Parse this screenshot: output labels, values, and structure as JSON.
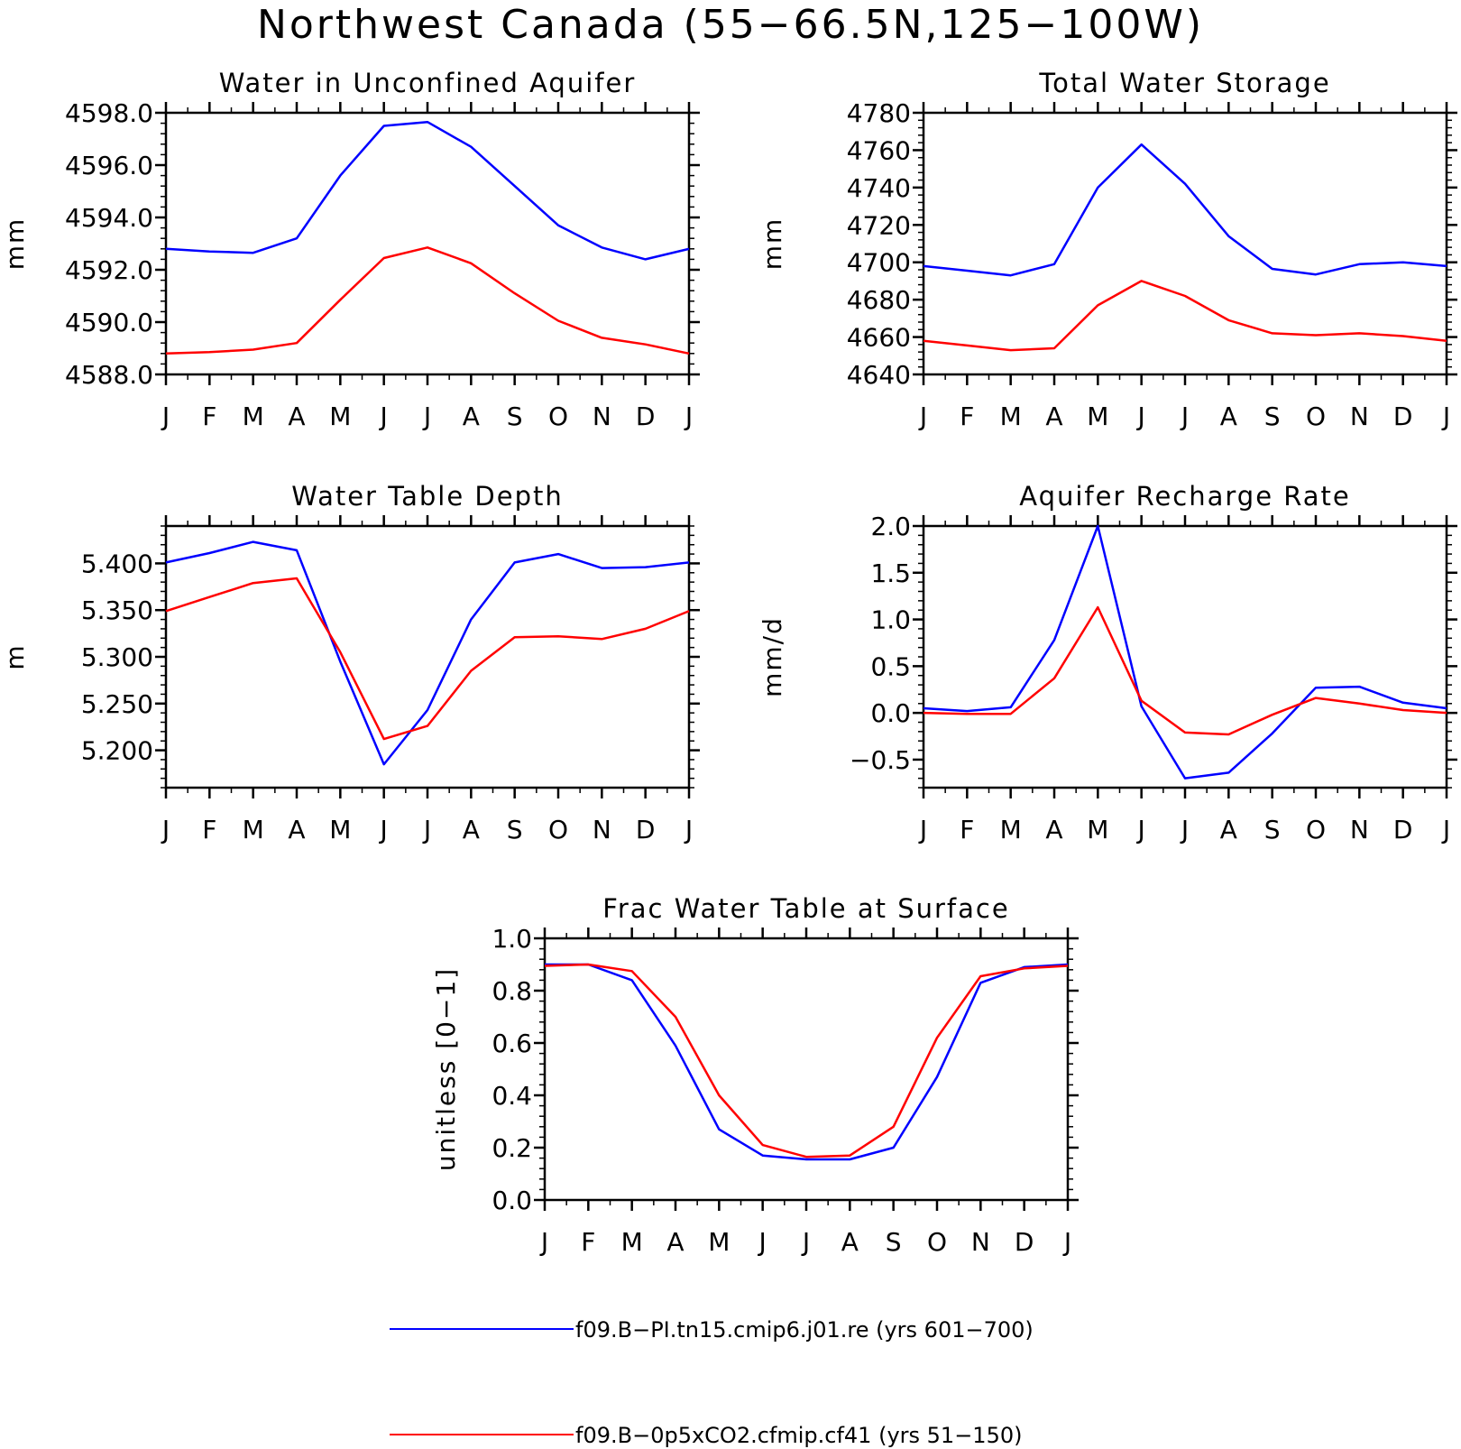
{
  "figure_title": "Northwest Canada (55−66.5N,125−100W)",
  "colors": {
    "series_blue": "#0000ff",
    "series_red": "#ff0000",
    "axes": "#000000"
  },
  "legend": [
    {
      "label": "f09.B−PI.tn15.cmip6.j01.re (yrs 601−700)",
      "color": "#0000ff"
    },
    {
      "label": "f09.B−0p5xCO2.cfmip.cf41 (yrs 51−150)",
      "color": "#ff0000"
    }
  ],
  "chart_data": [
    {
      "type": "line",
      "title": "Water in Unconfined Aquifer",
      "xlabel": "",
      "ylabel": "mm",
      "categories": [
        "J",
        "F",
        "M",
        "A",
        "M",
        "J",
        "J",
        "A",
        "S",
        "O",
        "N",
        "D",
        "J"
      ],
      "ylim": [
        4588.0,
        4598.0
      ],
      "yticks": [
        "4588.0",
        "4590.0",
        "4592.0",
        "4594.0",
        "4596.0",
        "4598.0"
      ],
      "series": [
        {
          "name": "f09.B−PI.tn15.cmip6.j01.re (yrs 601−700)",
          "color": "#0000ff",
          "values": [
            4592.8,
            4592.7,
            4592.65,
            4593.2,
            4595.6,
            4597.5,
            4597.65,
            4596.7,
            4595.2,
            4593.7,
            4592.85,
            4592.4,
            4592.8
          ]
        },
        {
          "name": "f09.B−0p5xCO2.cfmip.cf41 (yrs 51−150)",
          "color": "#ff0000",
          "values": [
            4588.8,
            4588.85,
            4588.95,
            4589.2,
            4590.85,
            4592.45,
            4592.85,
            4592.25,
            4591.1,
            4590.05,
            4589.4,
            4589.15,
            4588.8
          ]
        }
      ]
    },
    {
      "type": "line",
      "title": "Total Water Storage",
      "xlabel": "",
      "ylabel": "mm",
      "categories": [
        "J",
        "F",
        "M",
        "A",
        "M",
        "J",
        "J",
        "A",
        "S",
        "O",
        "N",
        "D",
        "J"
      ],
      "ylim": [
        4640,
        4780
      ],
      "yticks": [
        "4640",
        "4660",
        "4680",
        "4700",
        "4720",
        "4740",
        "4760",
        "4780"
      ],
      "series": [
        {
          "name": "f09.B−PI.tn15.cmip6.j01.re (yrs 601−700)",
          "color": "#0000ff",
          "values": [
            4698,
            4695.5,
            4693,
            4699,
            4740,
            4763,
            4742,
            4714,
            4696.5,
            4693.5,
            4699,
            4700,
            4698
          ]
        },
        {
          "name": "f09.B−0p5xCO2.cfmip.cf41 (yrs 51−150)",
          "color": "#ff0000",
          "values": [
            4658,
            4655.5,
            4653,
            4654,
            4677,
            4690,
            4682,
            4669,
            4662,
            4661,
            4662,
            4660.5,
            4658
          ]
        }
      ]
    },
    {
      "type": "line",
      "title": "Water Table Depth",
      "xlabel": "",
      "ylabel": "m",
      "categories": [
        "J",
        "F",
        "M",
        "A",
        "M",
        "J",
        "J",
        "A",
        "S",
        "O",
        "N",
        "D",
        "J"
      ],
      "ylim": [
        5.16,
        5.44
      ],
      "yticks": [
        "5.200",
        "5.250",
        "5.300",
        "5.350",
        "5.400"
      ],
      "series": [
        {
          "name": "f09.B−PI.tn15.cmip6.j01.re (yrs 601−700)",
          "color": "#0000ff",
          "values": [
            5.401,
            5.411,
            5.423,
            5.414,
            5.295,
            5.185,
            5.243,
            5.34,
            5.401,
            5.41,
            5.395,
            5.396,
            5.401
          ]
        },
        {
          "name": "f09.B−0p5xCO2.cfmip.cf41 (yrs 51−150)",
          "color": "#ff0000",
          "values": [
            5.349,
            5.364,
            5.379,
            5.384,
            5.305,
            5.212,
            5.226,
            5.285,
            5.321,
            5.322,
            5.319,
            5.33,
            5.349
          ]
        }
      ]
    },
    {
      "type": "line",
      "title": "Aquifer Recharge Rate",
      "xlabel": "",
      "ylabel": "mm/d",
      "categories": [
        "J",
        "F",
        "M",
        "A",
        "M",
        "J",
        "J",
        "A",
        "S",
        "O",
        "N",
        "D",
        "J"
      ],
      "ylim": [
        -0.8,
        2.0
      ],
      "yticks": [
        "−0.5",
        "0.0",
        "0.5",
        "1.0",
        "1.5",
        "2.0"
      ],
      "series": [
        {
          "name": "f09.B−PI.tn15.cmip6.j01.re (yrs 601−700)",
          "color": "#0000ff",
          "values": [
            0.05,
            0.02,
            0.06,
            0.78,
            2.0,
            0.07,
            -0.7,
            -0.64,
            -0.22,
            0.27,
            0.28,
            0.11,
            0.05
          ]
        },
        {
          "name": "f09.B−0p5xCO2.cfmip.cf41 (yrs 51−150)",
          "color": "#ff0000",
          "values": [
            0.0,
            -0.01,
            -0.01,
            0.37,
            1.13,
            0.13,
            -0.21,
            -0.23,
            -0.02,
            0.16,
            0.1,
            0.03,
            0.0
          ]
        }
      ]
    },
    {
      "type": "line",
      "title": "Frac Water Table at Surface",
      "xlabel": "",
      "ylabel": "unitless [0−1]",
      "categories": [
        "J",
        "F",
        "M",
        "A",
        "M",
        "J",
        "J",
        "A",
        "S",
        "O",
        "N",
        "D",
        "J"
      ],
      "ylim": [
        0.0,
        1.0
      ],
      "yticks": [
        "0.0",
        "0.2",
        "0.4",
        "0.6",
        "0.8",
        "1.0"
      ],
      "series": [
        {
          "name": "f09.B−PI.tn15.cmip6.j01.re (yrs 601−700)",
          "color": "#0000ff",
          "values": [
            0.9,
            0.9,
            0.84,
            0.59,
            0.27,
            0.17,
            0.155,
            0.155,
            0.2,
            0.47,
            0.83,
            0.89,
            0.9
          ]
        },
        {
          "name": "f09.B−0p5xCO2.cfmip.cf41 (yrs 51−150)",
          "color": "#ff0000",
          "values": [
            0.895,
            0.9,
            0.875,
            0.7,
            0.4,
            0.21,
            0.165,
            0.17,
            0.28,
            0.62,
            0.855,
            0.885,
            0.895
          ]
        }
      ]
    }
  ]
}
